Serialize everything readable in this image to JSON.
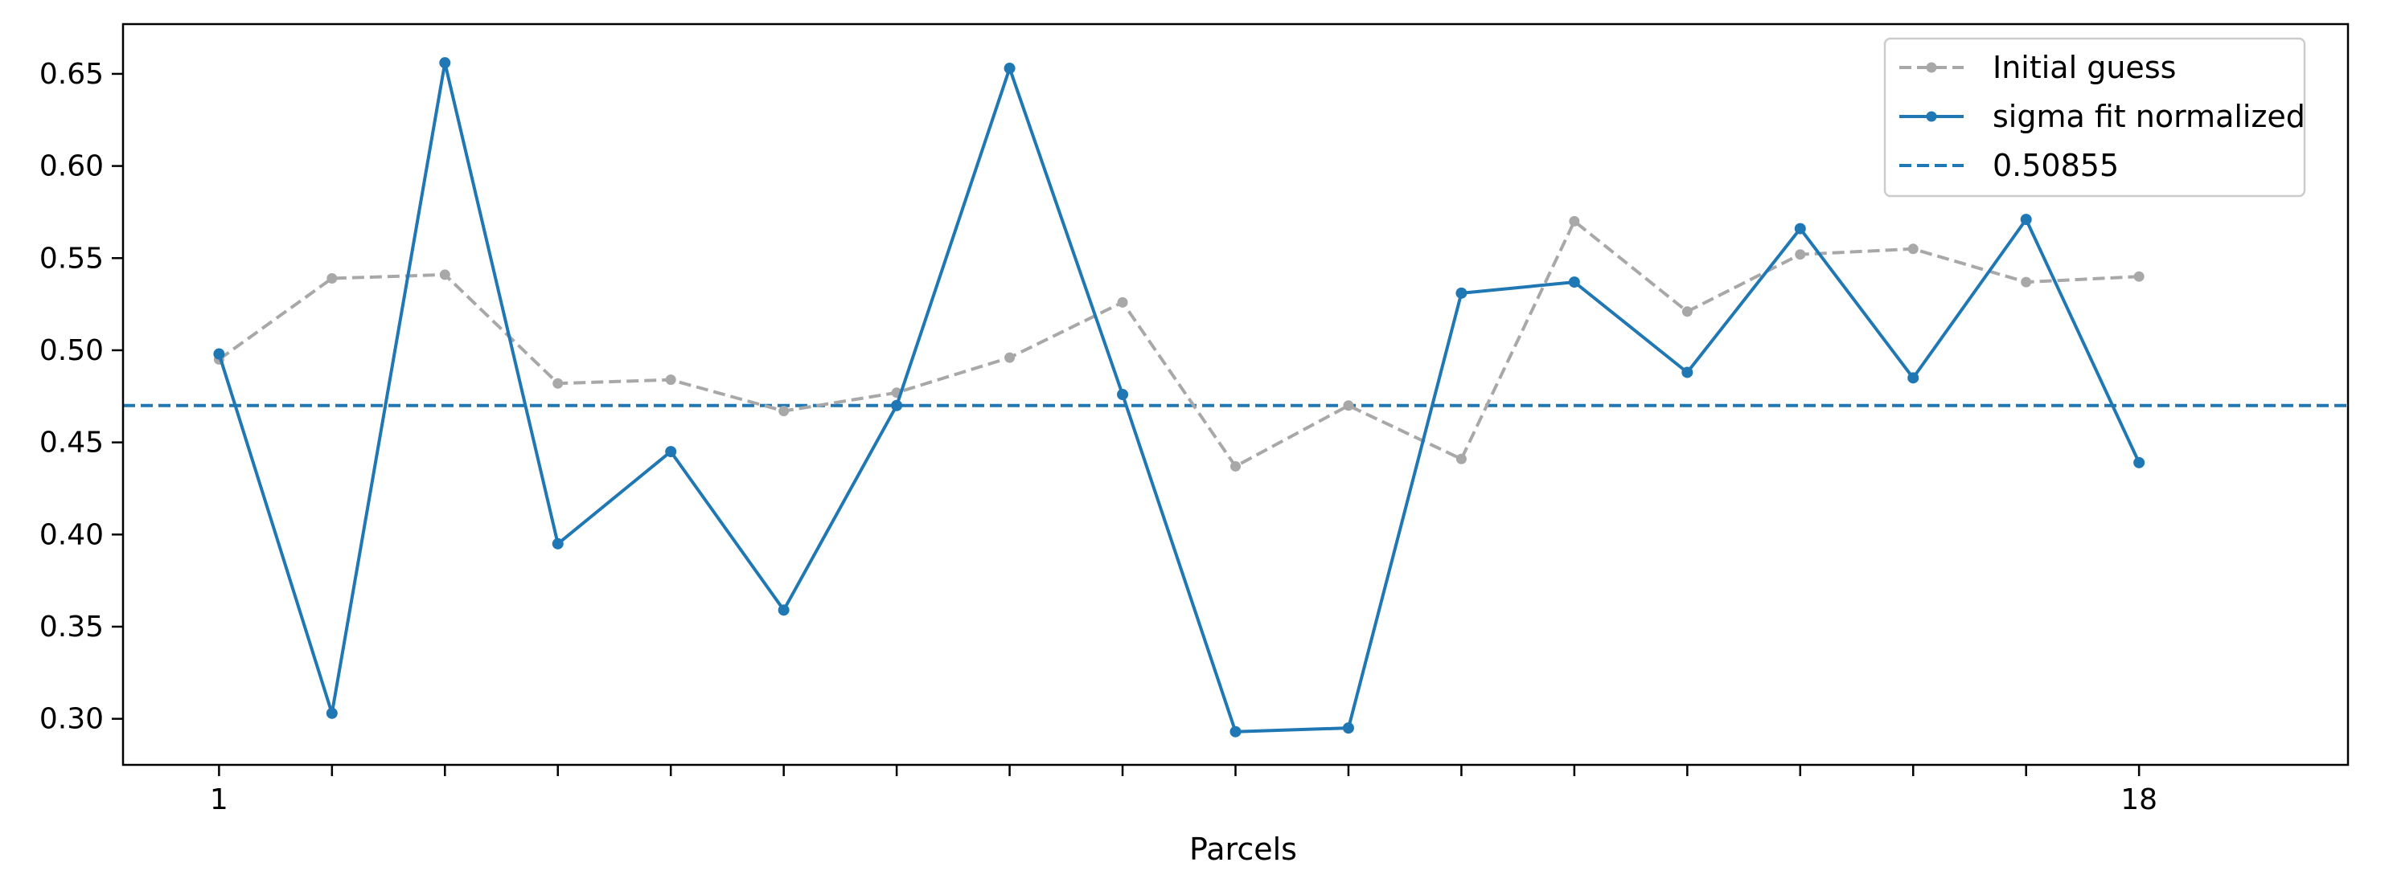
{
  "chart_data": {
    "type": "line",
    "title": "",
    "xlabel": "Parcels",
    "ylabel": "",
    "x": [
      1,
      2,
      3,
      4,
      5,
      6,
      7,
      8,
      9,
      10,
      11,
      12,
      13,
      14,
      15,
      16,
      17,
      18
    ],
    "xlim": [
      0.15,
      19.85
    ],
    "ylim": [
      0.275,
      0.677
    ],
    "x_tick_positions": [
      1,
      2,
      3,
      4,
      5,
      6,
      7,
      8,
      9,
      10,
      11,
      12,
      13,
      14,
      15,
      16,
      17,
      18
    ],
    "x_tick_labels": [
      "1",
      "",
      "",
      "",
      "",
      "",
      "",
      "",
      "",
      "",
      "",
      "",
      "",
      "",
      "",
      "",
      "",
      "18"
    ],
    "y_ticks": [
      0.3,
      0.35,
      0.4,
      0.45,
      0.5,
      0.55,
      0.6,
      0.65
    ],
    "y_tick_labels": [
      "0.30",
      "0.35",
      "0.40",
      "0.45",
      "0.50",
      "0.55",
      "0.60",
      "0.65"
    ],
    "series": [
      {
        "name": "Initial guess",
        "style": "dashed",
        "marker": "circle",
        "color": "#a8a8a8",
        "values": [
          0.495,
          0.539,
          0.541,
          0.482,
          0.484,
          0.467,
          0.477,
          0.496,
          0.526,
          0.437,
          0.47,
          0.441,
          0.57,
          0.521,
          0.552,
          0.555,
          0.537,
          0.54
        ]
      },
      {
        "name": "sigma fit normalized",
        "style": "solid",
        "marker": "circle",
        "color": "#1f77b4",
        "values": [
          0.498,
          0.303,
          0.656,
          0.395,
          0.445,
          0.359,
          0.47,
          0.653,
          0.476,
          0.293,
          0.295,
          0.531,
          0.537,
          0.488,
          0.566,
          0.485,
          0.571,
          0.439
        ]
      }
    ],
    "hlines": [
      {
        "name": "0.50855",
        "y": 0.47,
        "style": "dashed",
        "color": "#1f77b4"
      }
    ],
    "legend": {
      "position": "top-right"
    },
    "grid": false
  }
}
